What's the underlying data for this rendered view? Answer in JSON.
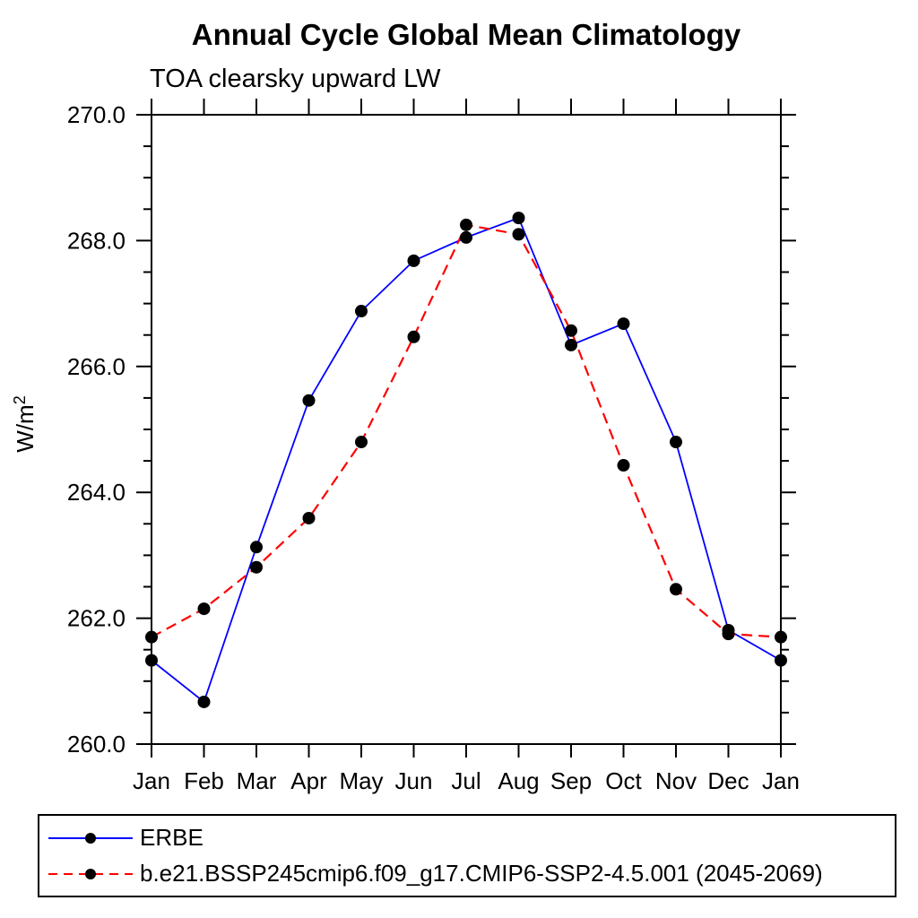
{
  "page": {
    "background": "#ffffff",
    "text_color": "#000000",
    "axis_color": "#000000"
  },
  "chart_data": {
    "type": "line",
    "title": "Annual Cycle Global Mean Climatology",
    "subtitle": "TOA clearsky upward LW",
    "ylabel": "W/m²",
    "ylabel_base": "W/m",
    "ylabel_superscript": "2",
    "categories": [
      "Jan",
      "Feb",
      "Mar",
      "Apr",
      "May",
      "Jun",
      "Jul",
      "Aug",
      "Sep",
      "Oct",
      "Nov",
      "Dec",
      "Jan"
    ],
    "ylim": [
      260.0,
      270.0
    ],
    "ytick_major": [
      260.0,
      262.0,
      264.0,
      266.0,
      268.0,
      270.0
    ],
    "ytick_major_labels": [
      "260.0",
      "262.0",
      "264.0",
      "266.0",
      "268.0",
      "270.0"
    ],
    "ytick_minor_step": 0.5,
    "grid": false,
    "legend_position": "boxed legend below plot, bottom-left",
    "marker": "filled-circle",
    "marker_color": "#000000",
    "series": [
      {
        "name": "ERBE",
        "color": "#0000ff",
        "line_style": "solid",
        "values": [
          261.33,
          260.67,
          263.13,
          265.46,
          266.88,
          267.68,
          268.05,
          268.36,
          266.34,
          266.68,
          264.8,
          261.81,
          261.33
        ]
      },
      {
        "name": "b.e21.BSSP245cmip6.f09_g17.CMIP6-SSP2-4.5.001 (2045-2069)",
        "color": "#ff0000",
        "line_style": "dashed",
        "values": [
          261.7,
          262.15,
          262.81,
          263.59,
          264.8,
          266.47,
          268.25,
          268.1,
          266.57,
          264.43,
          262.46,
          261.75,
          261.7
        ]
      }
    ]
  }
}
